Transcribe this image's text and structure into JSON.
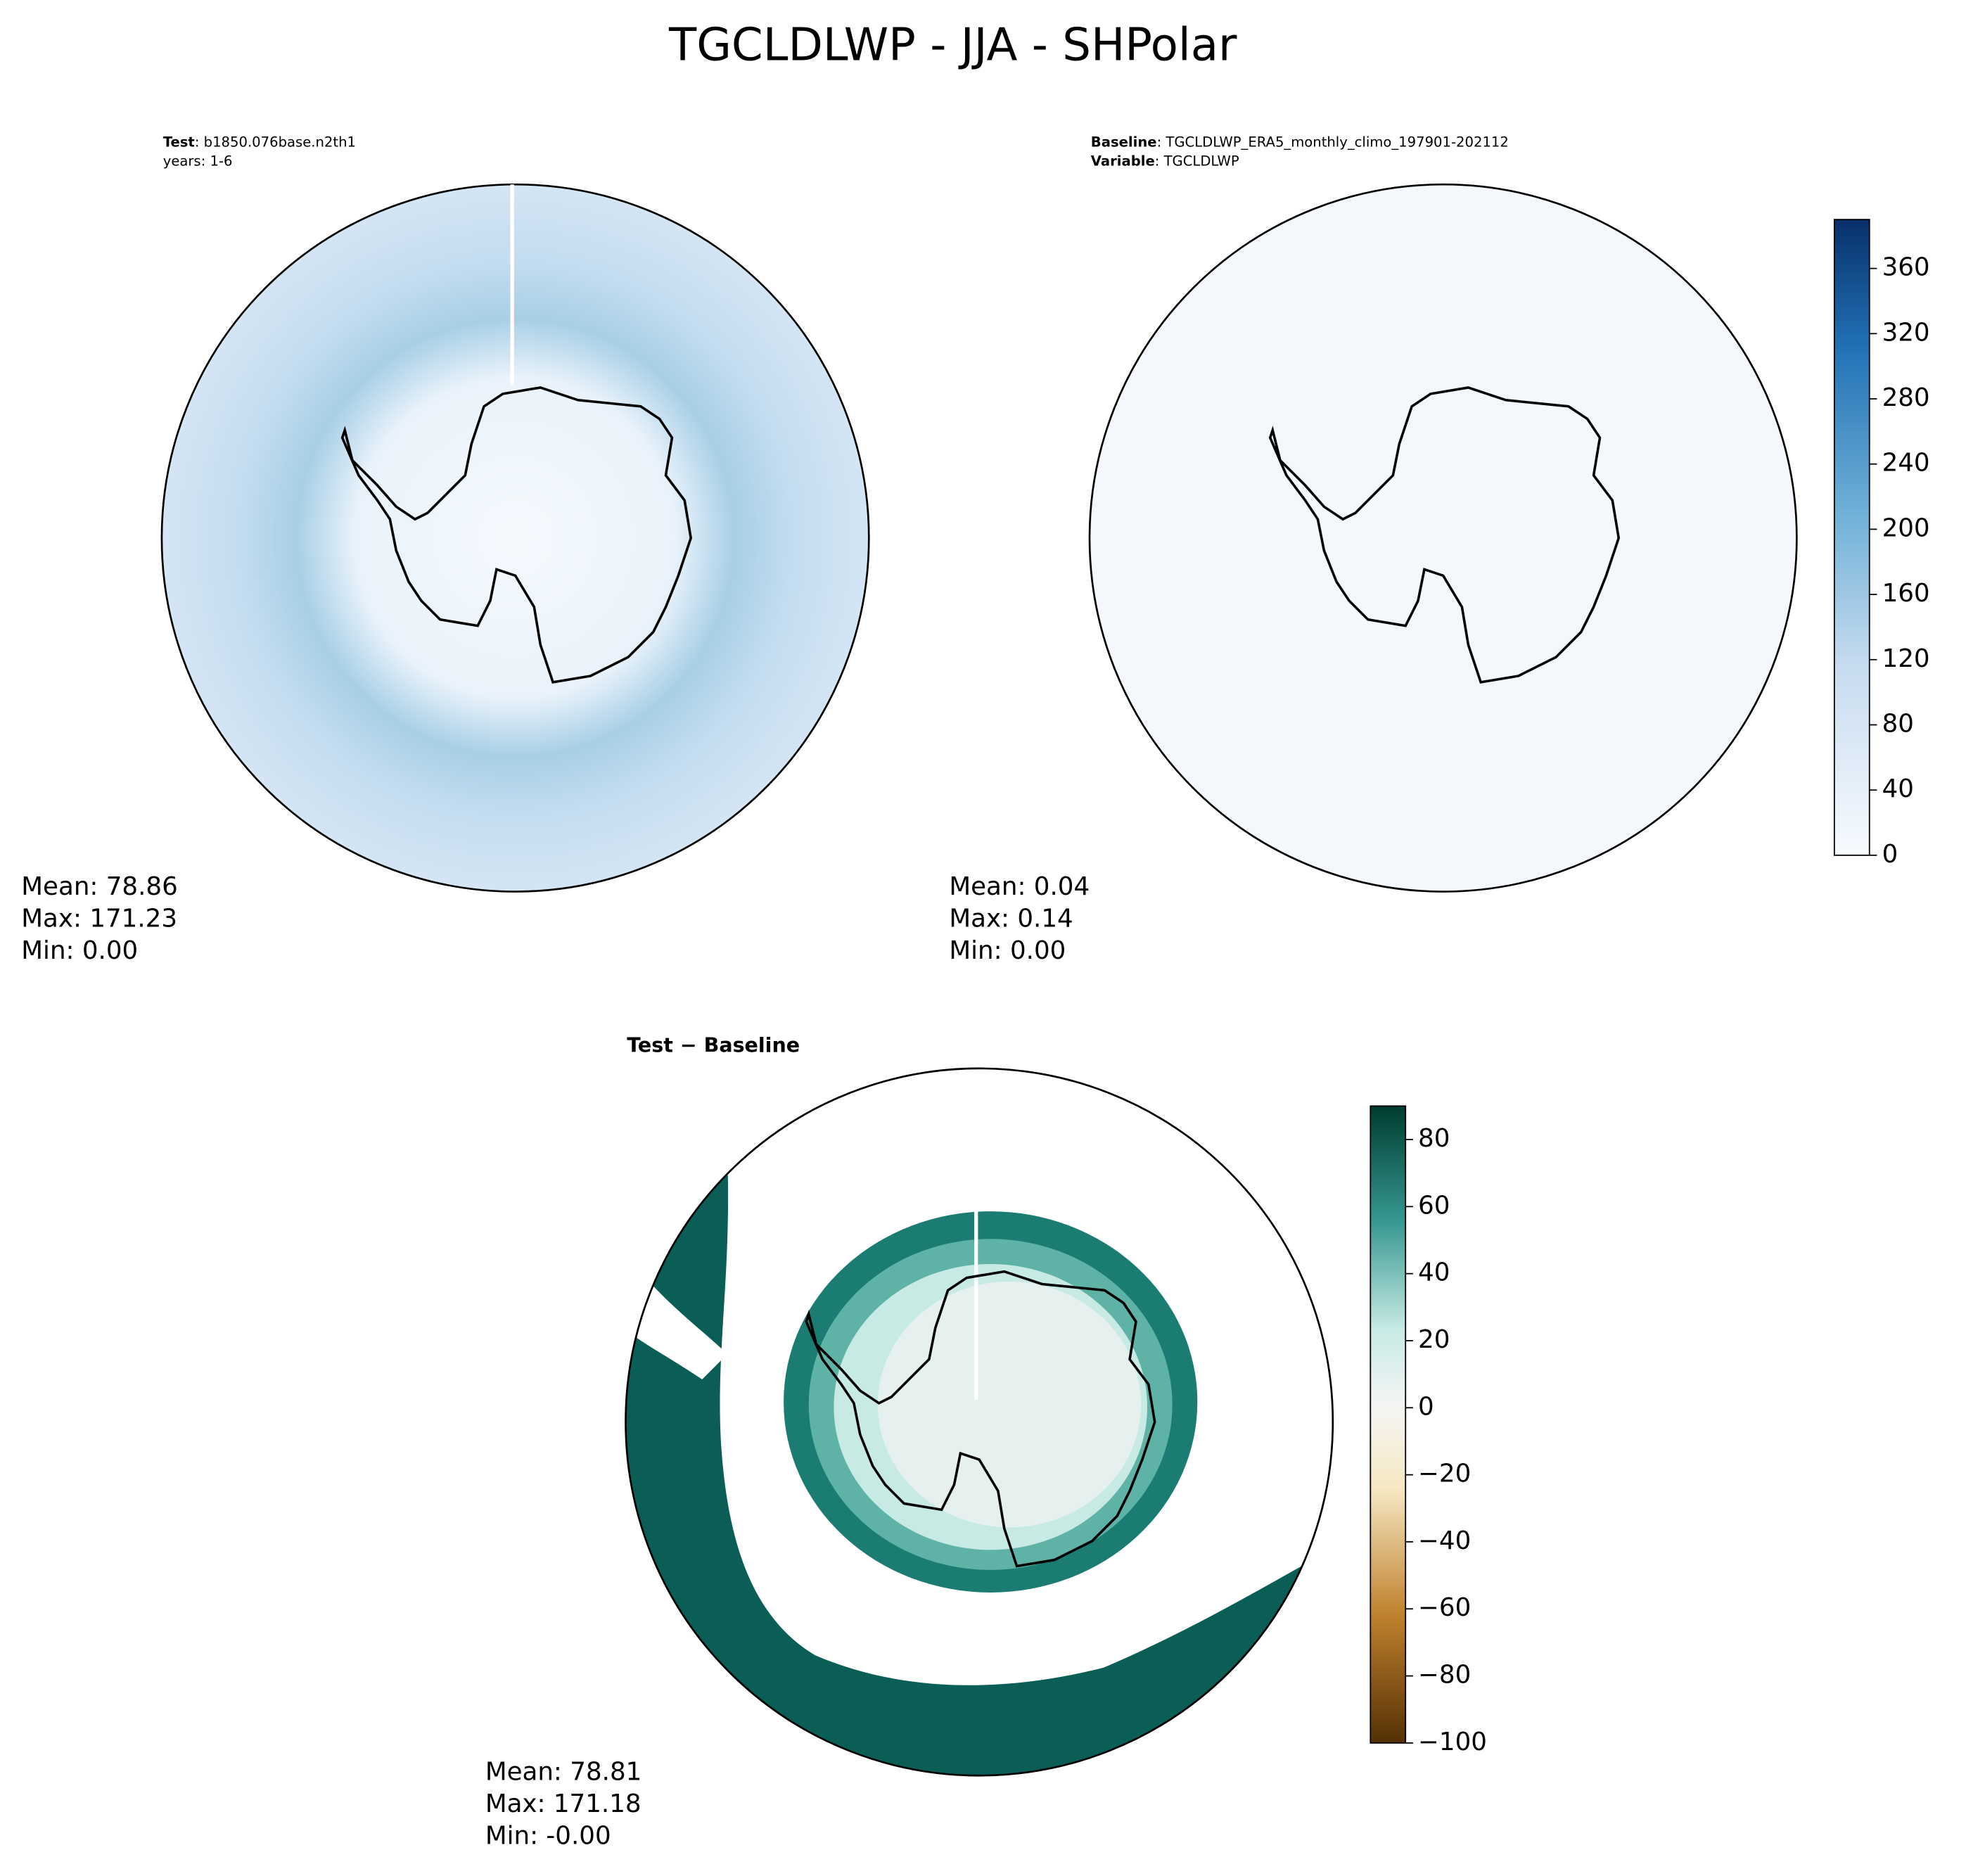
{
  "title": "TGCLDLWP - JJA - SHPolar",
  "panels": [
    {
      "label_bold": "Test",
      "label_rest": ": b1850.076base.n2th1",
      "line2": "years: 1-6",
      "stats": [
        "Mean: 78.86",
        "Max: 171.23",
        "Min:  0.00"
      ]
    },
    {
      "label_bold": "Baseline",
      "label_rest": ": TGCLDLWP_ERA5_monthly_climo_197901-202112",
      "line2_bold": "Variable",
      "line2_rest": ": TGCLDLWP",
      "stats": [
        "Mean:  0.04",
        "Max:  0.14",
        "Min:  0.00"
      ]
    },
    {
      "label_bold": "Test − Baseline",
      "stats": [
        "Mean: 78.81",
        "Max: 171.18",
        "Min: -0.00"
      ]
    }
  ],
  "colorbars": [
    {
      "lim": [
        0,
        390
      ],
      "ticks": [
        0,
        40,
        80,
        120,
        160,
        200,
        240,
        280,
        320,
        360
      ]
    },
    {
      "lim": [
        -100,
        90
      ],
      "ticks": [
        {
          "value": -100,
          "label": "−100"
        },
        {
          "value": -80,
          "label": "−80"
        },
        {
          "value": -60,
          "label": "−60"
        },
        {
          "value": -40,
          "label": "−40"
        },
        {
          "value": -20,
          "label": "−20"
        },
        0,
        20,
        40,
        60,
        80
      ]
    }
  ]
}
